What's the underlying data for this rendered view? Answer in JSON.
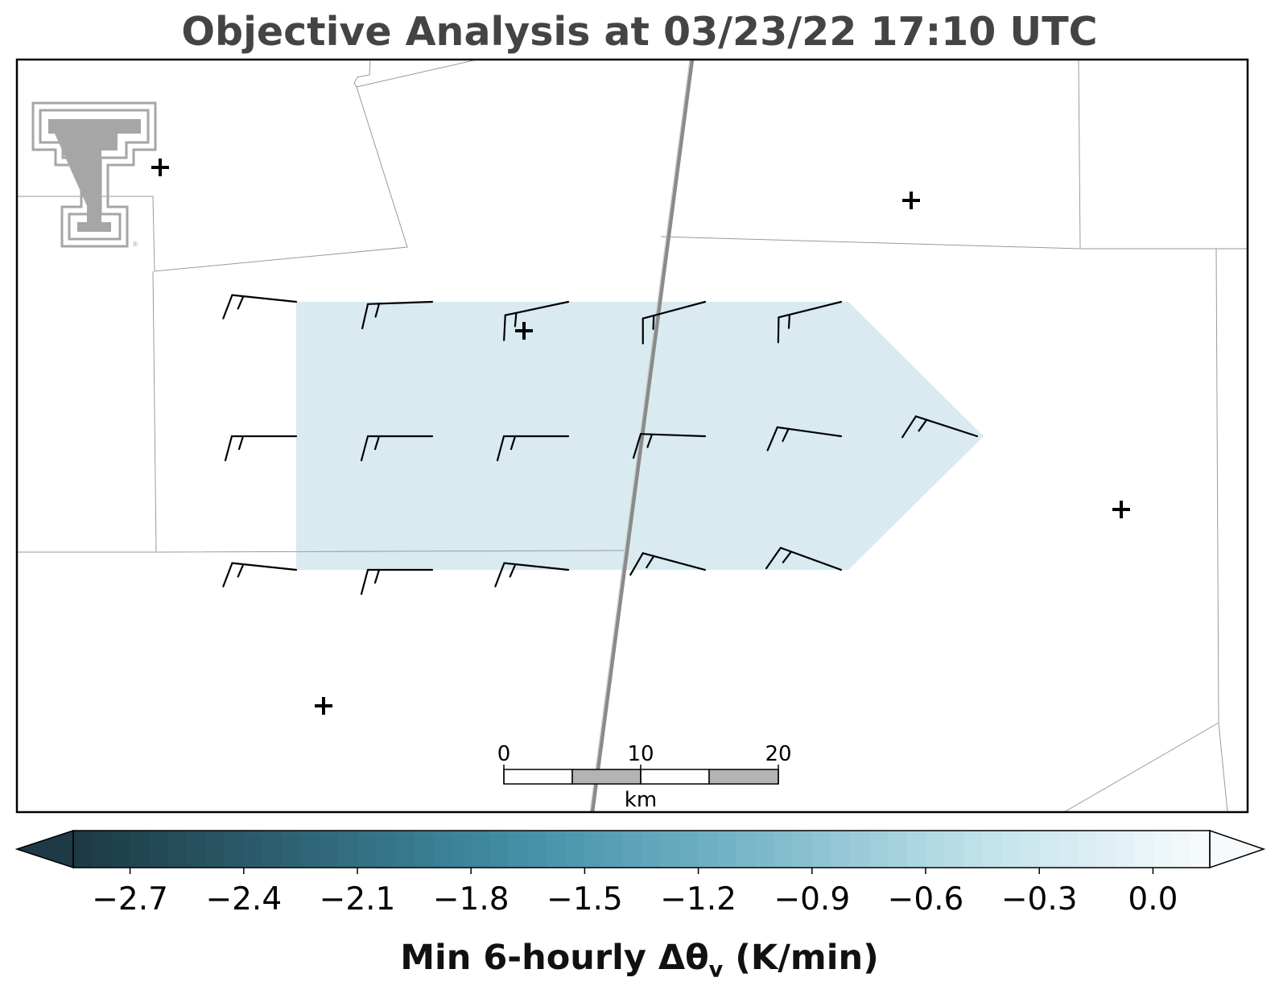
{
  "title": "Objective Analysis at 03/23/22 17:10 UTC",
  "map": {
    "county_line_color": "#9a9a9a",
    "highway_color": "#8a8a8a",
    "analysis_fill": "#d9eaf1",
    "barbs": [
      {
        "speed_kt": 15,
        "direction_deg": 276
      },
      {
        "speed_kt": 15,
        "direction_deg": 268
      },
      {
        "speed_kt": 15,
        "direction_deg": 258
      },
      {
        "speed_kt": 15,
        "direction_deg": 255
      },
      {
        "speed_kt": 15,
        "direction_deg": 256
      },
      {
        "speed_kt": 15,
        "direction_deg": 270
      },
      {
        "speed_kt": 15,
        "direction_deg": 270
      },
      {
        "speed_kt": 15,
        "direction_deg": 270
      },
      {
        "speed_kt": 15,
        "direction_deg": 272
      },
      {
        "speed_kt": 15,
        "direction_deg": 278
      },
      {
        "speed_kt": 15,
        "direction_deg": 288
      },
      {
        "speed_kt": 15,
        "direction_deg": 276
      },
      {
        "speed_kt": 15,
        "direction_deg": 270
      },
      {
        "speed_kt": 15,
        "direction_deg": 276
      },
      {
        "speed_kt": 15,
        "direction_deg": 285
      },
      {
        "speed_kt": 15,
        "direction_deg": 290
      }
    ],
    "station_marker": "+",
    "scale_bar": {
      "ticks": [
        "0",
        "10",
        "20"
      ],
      "unit": "km"
    }
  },
  "colorbar": {
    "min": -2.85,
    "max": 0.15,
    "ticks": [
      "−2.7",
      "−2.4",
      "−2.1",
      "−1.8",
      "−1.5",
      "−1.2",
      "−0.9",
      "−0.6",
      "−0.3",
      "0.0"
    ],
    "tick_values": [
      -2.7,
      -2.4,
      -2.1,
      -1.8,
      -1.5,
      -1.2,
      -0.9,
      -0.6,
      -0.3,
      0.0
    ],
    "colors": [
      "#1d3a46",
      "#2f6576",
      "#4491a8",
      "#7ab7c9",
      "#bfe1ea",
      "#f6fafc"
    ],
    "label_main": "Min 6-hourly Δθ",
    "label_sub": "v",
    "label_unit": " (K/min)"
  },
  "logo": {
    "name": "Texas Tech Double T",
    "color": "#a6a6a6"
  }
}
